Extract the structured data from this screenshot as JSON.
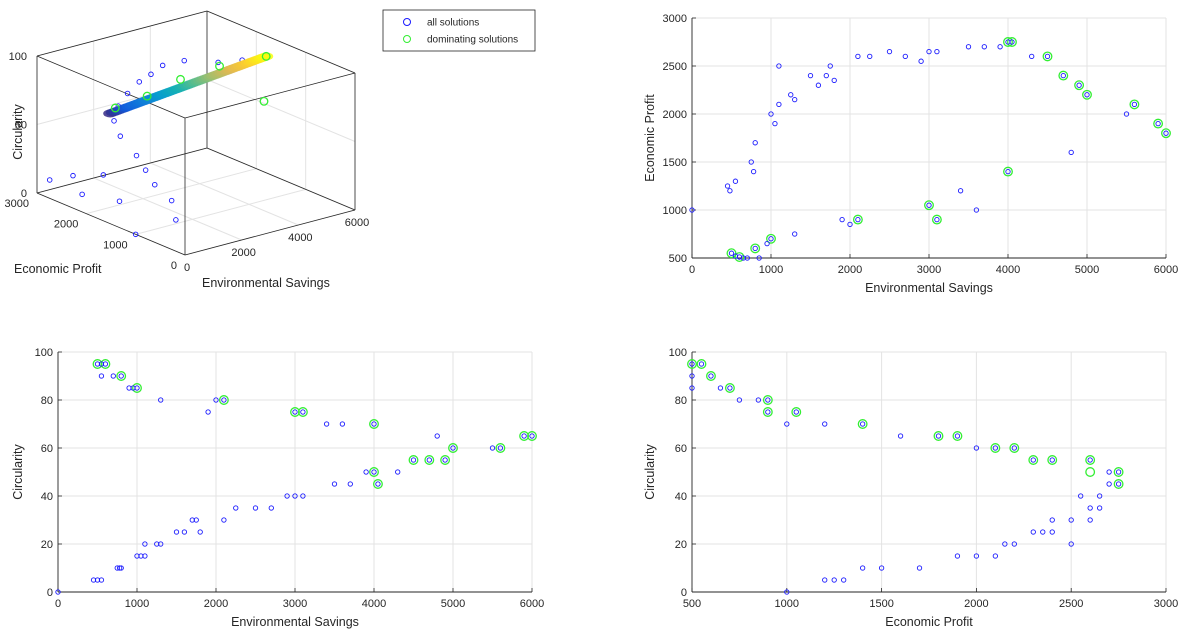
{
  "colors": {
    "all_solutions": "#1a1aff",
    "dominating": "#33ee33",
    "grid": "#e3e3e3",
    "axis": "#262626"
  },
  "legend": {
    "location": "top-right of 3D plot",
    "items": [
      {
        "label": "all solutions",
        "marker": "circle",
        "color": "#1a1aff"
      },
      {
        "label": "dominating solutions",
        "marker": "circle",
        "color": "#33ee33"
      }
    ]
  },
  "chart_data": [
    {
      "id": "3d",
      "type": "scatter",
      "projection": "3d",
      "xlabel": "Environmental Savings",
      "ylabel": "Economic Profit",
      "zlabel": "Circularity",
      "xlim": [
        0,
        6000
      ],
      "ylim": [
        0,
        3000
      ],
      "zlim": [
        0,
        100
      ],
      "xticks": [
        "0",
        "2000",
        "4000",
        "6000"
      ],
      "yticks": [
        "0",
        "1000",
        "2000",
        "3000"
      ],
      "zticks": [
        "0",
        "50",
        "100"
      ],
      "grid": true,
      "colormap": "parula",
      "points": [
        {
          "x": 0,
          "y": 1000,
          "z": 0
        },
        {
          "x": 200,
          "y": 300,
          "z": 20
        },
        {
          "x": 400,
          "y": 500,
          "z": 30
        },
        {
          "x": 500,
          "y": 900,
          "z": 35
        },
        {
          "x": 700,
          "y": 1200,
          "z": 40
        },
        {
          "x": 900,
          "y": 1500,
          "z": 45
        },
        {
          "x": 1200,
          "y": 2000,
          "z": 50
        },
        {
          "x": 1500,
          "y": 2300,
          "z": 55
        },
        {
          "x": 2000,
          "y": 2500,
          "z": 60
        },
        {
          "x": 2500,
          "y": 2600,
          "z": 65
        },
        {
          "x": 3000,
          "y": 2650,
          "z": 70
        },
        {
          "x": 3500,
          "y": 2700,
          "z": 72
        },
        {
          "x": 4000,
          "y": 2750,
          "z": 75
        },
        {
          "x": 4500,
          "y": 2600,
          "z": 78
        },
        {
          "x": 5000,
          "y": 2200,
          "z": 80
        },
        {
          "x": 5500,
          "y": 2000,
          "z": 82
        },
        {
          "x": 6000,
          "y": 1800,
          "z": 85
        },
        {
          "x": 300,
          "y": 1500,
          "z": 15
        },
        {
          "x": 200,
          "y": 2200,
          "z": 10
        },
        {
          "x": 100,
          "y": 2800,
          "z": 12
        },
        {
          "x": 400,
          "y": 2500,
          "z": 18
        },
        {
          "x": 600,
          "y": 2000,
          "z": 25
        }
      ]
    },
    {
      "id": "env-vs-econ",
      "type": "scatter",
      "xlabel": "Environmental Savings",
      "ylabel": "Economic Profit",
      "xlim": [
        0,
        6000
      ],
      "ylim": [
        500,
        3000
      ],
      "xticks": [
        "0",
        "1000",
        "2000",
        "3000",
        "4000",
        "5000",
        "6000"
      ],
      "yticks": [
        "500",
        "1000",
        "1500",
        "2000",
        "2500",
        "3000"
      ],
      "grid": true,
      "all_solutions": [
        [
          0,
          1000
        ],
        [
          450,
          1250
        ],
        [
          480,
          1200
        ],
        [
          550,
          1300
        ],
        [
          750,
          1500
        ],
        [
          800,
          1700
        ],
        [
          780,
          1400
        ],
        [
          1000,
          2000
        ],
        [
          1050,
          1900
        ],
        [
          1100,
          2100
        ],
        [
          1100,
          2500
        ],
        [
          1250,
          2200
        ],
        [
          1300,
          2150
        ],
        [
          1500,
          2400
        ],
        [
          1600,
          2300
        ],
        [
          1700,
          2400
        ],
        [
          1750,
          2500
        ],
        [
          1800,
          2350
        ],
        [
          2100,
          2600
        ],
        [
          2250,
          2600
        ],
        [
          2500,
          2650
        ],
        [
          2700,
          2600
        ],
        [
          2900,
          2550
        ],
        [
          3000,
          2650
        ],
        [
          3100,
          2650
        ],
        [
          3500,
          2700
        ],
        [
          3700,
          2700
        ],
        [
          3900,
          2700
        ],
        [
          4000,
          2750
        ],
        [
          4050,
          2750
        ],
        [
          4300,
          2600
        ],
        [
          4500,
          2600
        ],
        [
          4700,
          2400
        ],
        [
          4900,
          2300
        ],
        [
          5000,
          2200
        ],
        [
          5500,
          2000
        ],
        [
          5600,
          2100
        ],
        [
          5900,
          1900
        ],
        [
          6000,
          1800
        ],
        [
          4800,
          1600
        ],
        [
          500,
          550
        ],
        [
          550,
          520
        ],
        [
          600,
          510
        ],
        [
          650,
          500
        ],
        [
          700,
          500
        ],
        [
          800,
          600
        ],
        [
          850,
          500
        ],
        [
          950,
          650
        ],
        [
          1000,
          700
        ],
        [
          1300,
          750
        ],
        [
          1900,
          900
        ],
        [
          2000,
          850
        ],
        [
          2100,
          900
        ],
        [
          3000,
          1050
        ],
        [
          3100,
          900
        ],
        [
          3400,
          1200
        ],
        [
          3600,
          1000
        ],
        [
          4000,
          1400
        ]
      ],
      "dominating_solutions": [
        [
          500,
          550
        ],
        [
          600,
          510
        ],
        [
          800,
          600
        ],
        [
          1000,
          700
        ],
        [
          2100,
          900
        ],
        [
          3000,
          1050
        ],
        [
          3100,
          900
        ],
        [
          4000,
          1400
        ],
        [
          4000,
          2750
        ],
        [
          4050,
          2750
        ],
        [
          4500,
          2600
        ],
        [
          4700,
          2400
        ],
        [
          4900,
          2300
        ],
        [
          5000,
          2200
        ],
        [
          5600,
          2100
        ],
        [
          5900,
          1900
        ],
        [
          6000,
          1800
        ]
      ]
    },
    {
      "id": "env-vs-circ",
      "type": "scatter",
      "xlabel": "Environmental Savings",
      "ylabel": "Circularity",
      "xlim": [
        0,
        6000
      ],
      "ylim": [
        0,
        100
      ],
      "xticks": [
        "0",
        "1000",
        "2000",
        "3000",
        "4000",
        "5000",
        "6000"
      ],
      "yticks": [
        "0",
        "20",
        "40",
        "60",
        "80",
        "100"
      ],
      "grid": true,
      "all_solutions": [
        [
          0,
          0
        ],
        [
          450,
          5
        ],
        [
          500,
          5
        ],
        [
          550,
          5
        ],
        [
          750,
          10
        ],
        [
          780,
          10
        ],
        [
          800,
          10
        ],
        [
          1000,
          15
        ],
        [
          1050,
          15
        ],
        [
          1100,
          15
        ],
        [
          1100,
          20
        ],
        [
          1250,
          20
        ],
        [
          1300,
          20
        ],
        [
          1500,
          25
        ],
        [
          1600,
          25
        ],
        [
          1700,
          30
        ],
        [
          1750,
          30
        ],
        [
          1800,
          25
        ],
        [
          2100,
          30
        ],
        [
          2250,
          35
        ],
        [
          2500,
          35
        ],
        [
          2700,
          35
        ],
        [
          2900,
          40
        ],
        [
          3000,
          40
        ],
        [
          3100,
          40
        ],
        [
          3500,
          45
        ],
        [
          3700,
          45
        ],
        [
          3900,
          50
        ],
        [
          4000,
          50
        ],
        [
          4050,
          45
        ],
        [
          4300,
          50
        ],
        [
          4500,
          55
        ],
        [
          4700,
          55
        ],
        [
          4900,
          55
        ],
        [
          5000,
          60
        ],
        [
          5500,
          60
        ],
        [
          5600,
          60
        ],
        [
          5900,
          65
        ],
        [
          6000,
          65
        ],
        [
          4800,
          65
        ],
        [
          500,
          95
        ],
        [
          550,
          95
        ],
        [
          600,
          95
        ],
        [
          550,
          90
        ],
        [
          700,
          90
        ],
        [
          800,
          90
        ],
        [
          900,
          85
        ],
        [
          950,
          85
        ],
        [
          1000,
          85
        ],
        [
          1300,
          80
        ],
        [
          1900,
          75
        ],
        [
          2000,
          80
        ],
        [
          2100,
          80
        ],
        [
          3000,
          75
        ],
        [
          3100,
          75
        ],
        [
          3400,
          70
        ],
        [
          3600,
          70
        ],
        [
          4000,
          70
        ]
      ],
      "dominating_solutions": [
        [
          500,
          95
        ],
        [
          600,
          95
        ],
        [
          800,
          90
        ],
        [
          1000,
          85
        ],
        [
          2100,
          80
        ],
        [
          3000,
          75
        ],
        [
          3100,
          75
        ],
        [
          4000,
          70
        ],
        [
          4000,
          50
        ],
        [
          4050,
          45
        ],
        [
          4500,
          55
        ],
        [
          4700,
          55
        ],
        [
          4900,
          55
        ],
        [
          5000,
          60
        ],
        [
          5600,
          60
        ],
        [
          5900,
          65
        ],
        [
          6000,
          65
        ]
      ]
    },
    {
      "id": "econ-vs-circ",
      "type": "scatter",
      "xlabel": "Economic Profit",
      "ylabel": "Circularity",
      "xlim": [
        500,
        3000
      ],
      "ylim": [
        0,
        100
      ],
      "xticks": [
        "500",
        "1000",
        "1500",
        "2000",
        "2500",
        "3000"
      ],
      "yticks": [
        "0",
        "20",
        "40",
        "60",
        "80",
        "100"
      ],
      "grid": true,
      "all_solutions": [
        [
          500,
          95
        ],
        [
          500,
          90
        ],
        [
          500,
          85
        ],
        [
          550,
          95
        ],
        [
          600,
          90
        ],
        [
          650,
          85
        ],
        [
          700,
          85
        ],
        [
          750,
          80
        ],
        [
          850,
          80
        ],
        [
          900,
          80
        ],
        [
          900,
          75
        ],
        [
          1000,
          70
        ],
        [
          1050,
          75
        ],
        [
          1200,
          70
        ],
        [
          1400,
          70
        ],
        [
          1600,
          65
        ],
        [
          1800,
          65
        ],
        [
          1900,
          65
        ],
        [
          2000,
          60
        ],
        [
          2100,
          60
        ],
        [
          2200,
          60
        ],
        [
          2300,
          55
        ],
        [
          2400,
          55
        ],
        [
          2600,
          55
        ],
        [
          2700,
          50
        ],
        [
          2750,
          50
        ],
        [
          2700,
          45
        ],
        [
          2750,
          45
        ],
        [
          2650,
          40
        ],
        [
          2550,
          40
        ],
        [
          2600,
          35
        ],
        [
          2650,
          35
        ],
        [
          2600,
          30
        ],
        [
          2500,
          30
        ],
        [
          2400,
          30
        ],
        [
          2500,
          20
        ],
        [
          2400,
          25
        ],
        [
          2350,
          25
        ],
        [
          2300,
          25
        ],
        [
          2200,
          20
        ],
        [
          2150,
          20
        ],
        [
          2100,
          15
        ],
        [
          2000,
          15
        ],
        [
          1900,
          15
        ],
        [
          1700,
          10
        ],
        [
          1500,
          10
        ],
        [
          1400,
          10
        ],
        [
          1300,
          5
        ],
        [
          1250,
          5
        ],
        [
          1200,
          5
        ],
        [
          1000,
          0
        ]
      ],
      "dominating_solutions": [
        [
          500,
          95
        ],
        [
          550,
          95
        ],
        [
          600,
          90
        ],
        [
          700,
          85
        ],
        [
          900,
          80
        ],
        [
          900,
          75
        ],
        [
          1050,
          75
        ],
        [
          1400,
          70
        ],
        [
          1800,
          65
        ],
        [
          1900,
          65
        ],
        [
          2100,
          60
        ],
        [
          2200,
          60
        ],
        [
          2300,
          55
        ],
        [
          2400,
          55
        ],
        [
          2600,
          55
        ],
        [
          2600,
          50
        ],
        [
          2750,
          50
        ],
        [
          2750,
          45
        ]
      ]
    }
  ]
}
